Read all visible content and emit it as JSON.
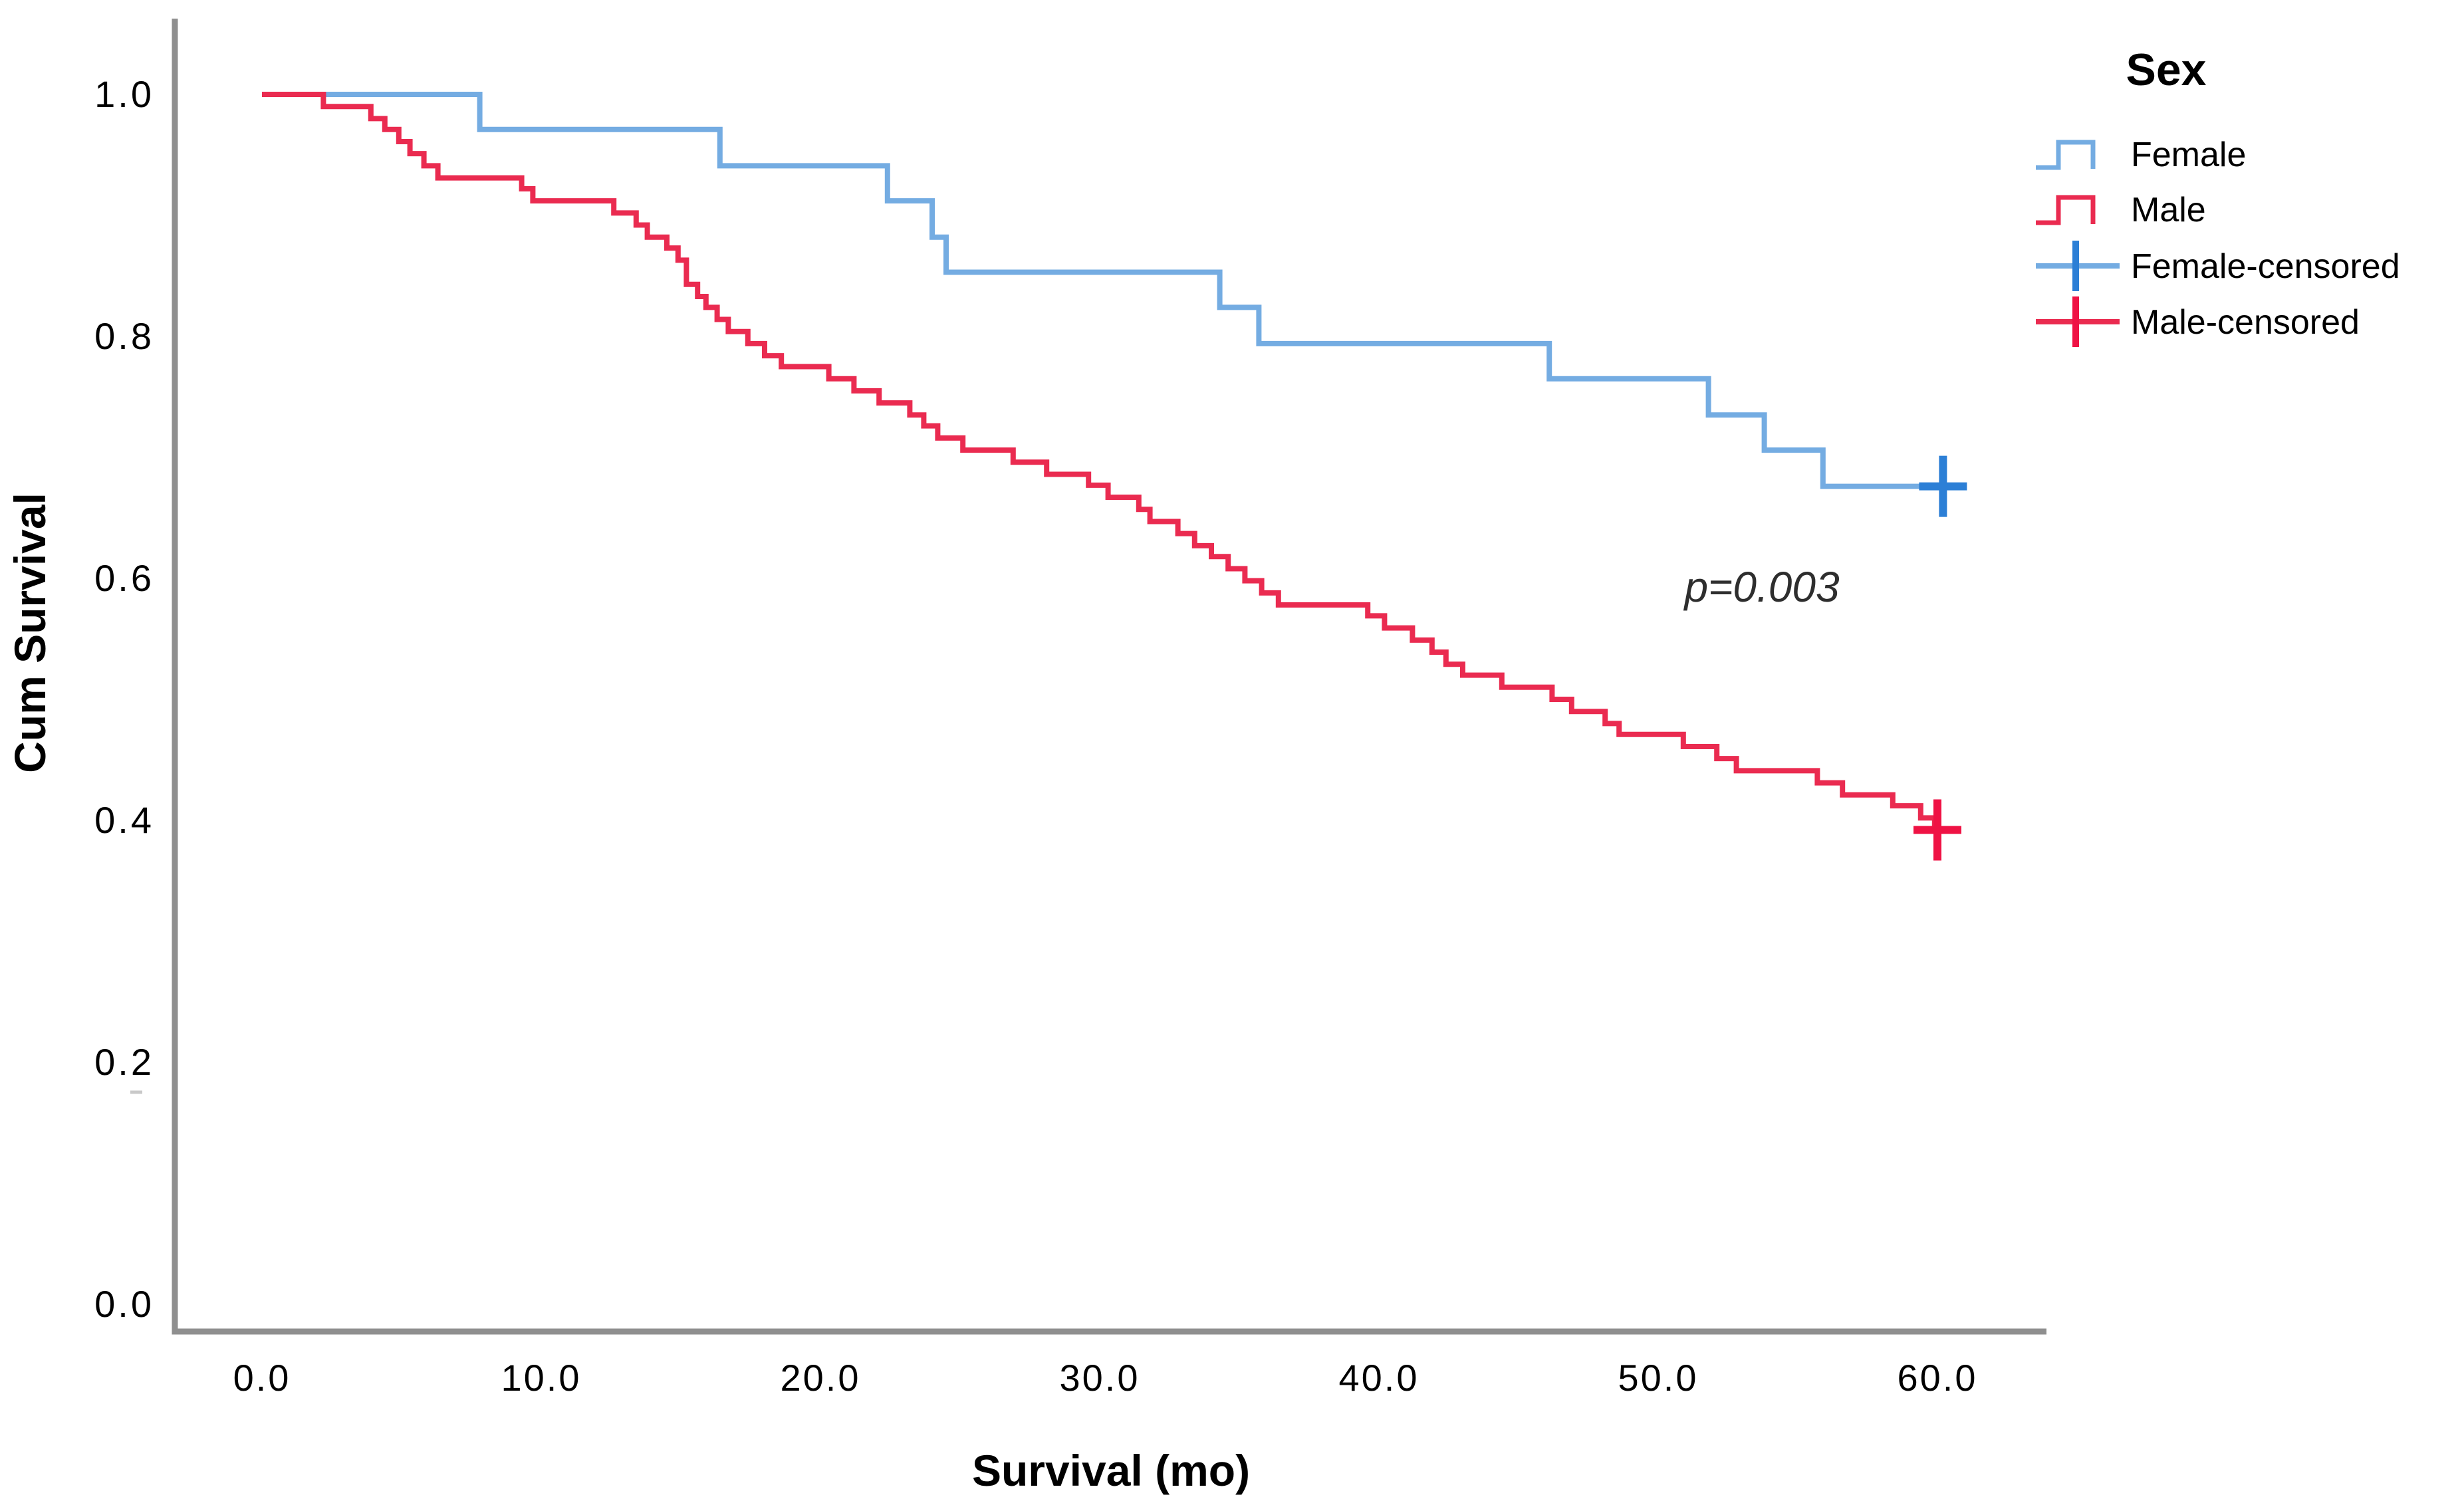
{
  "chart_data": {
    "type": "line",
    "subtype": "kaplan-meier-step-survival",
    "title": "",
    "annotation": "p=0.003",
    "x_axis": {
      "title": "Survival (mo)",
      "ticks": [
        0,
        10,
        20,
        30,
        40,
        50,
        60
      ],
      "tick_labels": [
        "0.0",
        "10.0",
        "20.0",
        "30.0",
        "40.0",
        "50.0",
        "60.0"
      ],
      "range": [
        0,
        63.8
      ]
    },
    "y_axis": {
      "title": "Cum Survival",
      "ticks": [
        1.0,
        0.8,
        0.6,
        0.4,
        0.2,
        0.0
      ],
      "tick_labels": [
        "1.0",
        "0.8",
        "0.6",
        "0.4",
        "0.2",
        "0.0"
      ],
      "range": [
        0,
        1
      ]
    },
    "legend": {
      "title": "Sex",
      "items": [
        {
          "label": "Female",
          "type": "step-line",
          "color": "#74ACE2"
        },
        {
          "label": "Male",
          "type": "step-line",
          "color": "#EA2B50"
        },
        {
          "label": "Female-censored",
          "type": "censor-cross",
          "color": "#2C7FD6",
          "line_color": "#74ACE2"
        },
        {
          "label": "Male-censored",
          "type": "censor-cross",
          "color": "#EF1244",
          "line_color": "#EA2B50"
        }
      ]
    },
    "series": [
      {
        "name": "Female",
        "color": "#74ACE2",
        "censor_color": "#2C7FD6",
        "start": [
          0,
          1.0
        ],
        "steps": [
          [
            7.8,
            0.971
          ],
          [
            16.4,
            0.941
          ],
          [
            22.4,
            0.912
          ],
          [
            24.0,
            0.882
          ],
          [
            24.5,
            0.853
          ],
          [
            34.3,
            0.824
          ],
          [
            35.7,
            0.794
          ],
          [
            46.1,
            0.765
          ],
          [
            51.8,
            0.735
          ],
          [
            53.8,
            0.706
          ],
          [
            55.9,
            0.676
          ]
        ],
        "end_time": 60.45,
        "censored_marks": [
          [
            60.2,
            0.676
          ]
        ]
      },
      {
        "name": "Male",
        "color": "#EA2B50",
        "censor_color": "#EF1244",
        "start": [
          0,
          1.0
        ],
        "steps": [
          [
            2.2,
            0.99
          ],
          [
            3.9,
            0.98
          ],
          [
            4.4,
            0.971
          ],
          [
            4.9,
            0.961
          ],
          [
            5.3,
            0.951
          ],
          [
            5.8,
            0.941
          ],
          [
            6.3,
            0.931
          ],
          [
            9.3,
            0.922
          ],
          [
            9.7,
            0.912
          ],
          [
            12.6,
            0.902
          ],
          [
            13.4,
            0.892
          ],
          [
            13.8,
            0.882
          ],
          [
            14.5,
            0.873
          ],
          [
            14.9,
            0.863
          ],
          [
            15.2,
            0.843
          ],
          [
            15.6,
            0.833
          ],
          [
            15.9,
            0.824
          ],
          [
            16.3,
            0.814
          ],
          [
            16.7,
            0.804
          ],
          [
            17.4,
            0.794
          ],
          [
            18.0,
            0.784
          ],
          [
            18.6,
            0.775
          ],
          [
            20.3,
            0.765
          ],
          [
            21.2,
            0.755
          ],
          [
            22.1,
            0.745
          ],
          [
            23.2,
            0.735
          ],
          [
            23.7,
            0.726
          ],
          [
            24.2,
            0.716
          ],
          [
            25.1,
            0.706
          ],
          [
            26.9,
            0.696
          ],
          [
            28.1,
            0.686
          ],
          [
            29.6,
            0.677
          ],
          [
            30.3,
            0.667
          ],
          [
            31.4,
            0.657
          ],
          [
            31.8,
            0.647
          ],
          [
            32.8,
            0.637
          ],
          [
            33.4,
            0.627
          ],
          [
            34.0,
            0.618
          ],
          [
            34.6,
            0.608
          ],
          [
            35.2,
            0.598
          ],
          [
            35.8,
            0.588
          ],
          [
            36.4,
            0.578
          ],
          [
            39.6,
            0.569
          ],
          [
            40.2,
            0.559
          ],
          [
            41.2,
            0.549
          ],
          [
            41.9,
            0.539
          ],
          [
            42.4,
            0.529
          ],
          [
            43.0,
            0.52
          ],
          [
            44.4,
            0.51
          ],
          [
            46.2,
            0.5
          ],
          [
            46.9,
            0.49
          ],
          [
            48.1,
            0.48
          ],
          [
            48.6,
            0.471
          ],
          [
            50.9,
            0.461
          ],
          [
            52.1,
            0.451
          ],
          [
            52.8,
            0.441
          ],
          [
            55.7,
            0.431
          ],
          [
            56.6,
            0.421
          ],
          [
            58.4,
            0.412
          ],
          [
            59.4,
            0.402
          ],
          [
            59.9,
            0.392
          ]
        ],
        "end_time": 60.35,
        "censored_marks": [
          [
            60.0,
            0.392
          ]
        ]
      }
    ]
  }
}
